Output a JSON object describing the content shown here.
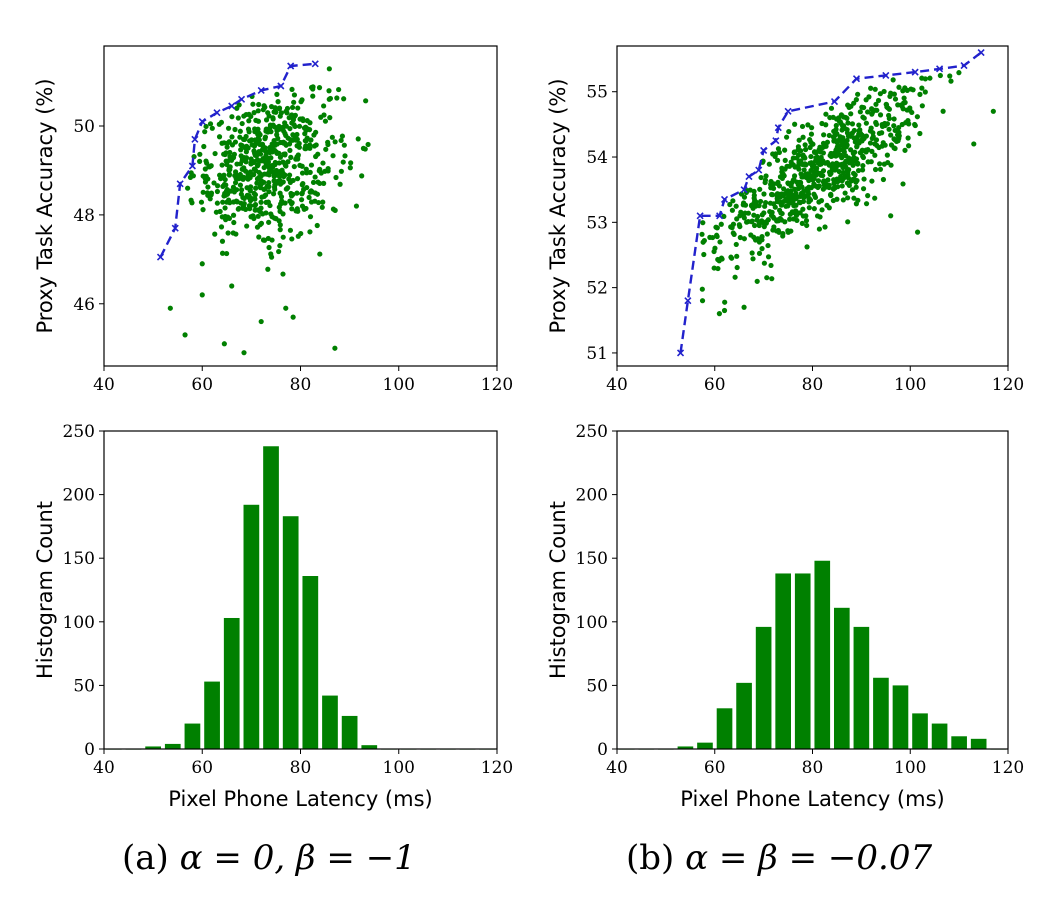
{
  "colors": {
    "scatter": "#008000",
    "frontier": "#2222cc",
    "bar": "#008000",
    "axis": "#000000"
  },
  "captions": {
    "a": {
      "label": "(a)",
      "math": "α = 0, β = −1"
    },
    "b": {
      "label": "(b)",
      "math": "α = β = −0.07"
    }
  },
  "chart_data": [
    {
      "id": "scatter-a",
      "type": "scatter",
      "title": "",
      "xlabel": "",
      "ylabel": "Proxy Task Accuracy (%)",
      "xlim": [
        40,
        120
      ],
      "ylim": [
        44.6,
        51.8
      ],
      "xticks": [
        "40",
        "60",
        "80",
        "100",
        "120"
      ],
      "yticks": [
        "46",
        "48",
        "50"
      ],
      "cloud": {
        "n": 620,
        "x_mean": 73,
        "x_sd": 7.5,
        "y_mean": 49.2,
        "y_sd": 0.85,
        "slope": 0.02,
        "xmin": 51,
        "xmax": 94,
        "ymin": 44.9,
        "ymax": 51.3
      },
      "outliers": [
        [
          53.5,
          45.9
        ],
        [
          56.5,
          45.3
        ],
        [
          60,
          46.2
        ],
        [
          64.5,
          45.1
        ],
        [
          68.5,
          44.9
        ],
        [
          72,
          45.6
        ],
        [
          77,
          45.9
        ],
        [
          78.5,
          45.7
        ],
        [
          87,
          45
        ],
        [
          60,
          46.9
        ],
        [
          66,
          46.4
        ]
      ],
      "frontier": [
        [
          51.5,
          47.05
        ],
        [
          54.5,
          47.7
        ],
        [
          55.5,
          48.7
        ],
        [
          58,
          49.1
        ],
        [
          58.5,
          49.7
        ],
        [
          60,
          50.1
        ],
        [
          63,
          50.3
        ],
        [
          66,
          50.45
        ],
        [
          68,
          50.6
        ],
        [
          72,
          50.8
        ],
        [
          76,
          50.9
        ],
        [
          78,
          51.35
        ],
        [
          83,
          51.4
        ]
      ]
    },
    {
      "id": "scatter-b",
      "type": "scatter",
      "title": "",
      "xlabel": "",
      "ylabel": "Proxy Task Accuracy (%)",
      "xlim": [
        40,
        120
      ],
      "ylim": [
        50.8,
        55.7
      ],
      "xticks": [
        "40",
        "60",
        "80",
        "100",
        "120"
      ],
      "yticks": [
        "51",
        "52",
        "53",
        "54",
        "55"
      ],
      "cloud": {
        "n": 720,
        "x_mean": 81,
        "x_sd": 11,
        "y_mean": 53.75,
        "y_sd": 0.4,
        "slope": 0.05,
        "xmin": 55,
        "xmax": 118,
        "ymin": 51.6,
        "ymax": 55.6
      },
      "outliers": [
        [
          57.5,
          51.8
        ],
        [
          62,
          51.65
        ],
        [
          66,
          51.7
        ],
        [
          101.5,
          52.85
        ],
        [
          96,
          53.1
        ],
        [
          113,
          54.2
        ],
        [
          117,
          54.7
        ]
      ],
      "frontier": [
        [
          53,
          51
        ],
        [
          54.5,
          51.8
        ],
        [
          57,
          53.1
        ],
        [
          61,
          53.1
        ],
        [
          62,
          53.35
        ],
        [
          66,
          53.5
        ],
        [
          67,
          53.7
        ],
        [
          69,
          53.8
        ],
        [
          70,
          54.1
        ],
        [
          72.5,
          54.25
        ],
        [
          73,
          54.45
        ],
        [
          75,
          54.7
        ],
        [
          84.5,
          54.85
        ],
        [
          89,
          55.2
        ],
        [
          95,
          55.25
        ],
        [
          101,
          55.3
        ],
        [
          106,
          55.35
        ],
        [
          111,
          55.4
        ],
        [
          114.5,
          55.6
        ]
      ]
    },
    {
      "id": "hist-a",
      "type": "bar",
      "title": "",
      "xlabel": "Pixel Phone Latency (ms)",
      "ylabel": "Histogram Count",
      "xlim": [
        40,
        120
      ],
      "ylim": [
        0,
        250
      ],
      "xticks": [
        "40",
        "60",
        "80",
        "100",
        "120"
      ],
      "yticks": [
        "0",
        "50",
        "100",
        "150",
        "200",
        "250"
      ],
      "bin_width": 4,
      "bin_centers": [
        42,
        46,
        50,
        54,
        58,
        62,
        66,
        70,
        74,
        78,
        82,
        86,
        90,
        94,
        98,
        102,
        106,
        110,
        114,
        118
      ],
      "values": [
        0,
        0,
        2,
        4,
        20,
        53,
        103,
        192,
        238,
        183,
        136,
        42,
        26,
        3,
        0,
        0,
        0,
        0,
        0,
        0
      ]
    },
    {
      "id": "hist-b",
      "type": "bar",
      "title": "",
      "xlabel": "Pixel Phone Latency (ms)",
      "ylabel": "Histogram Count",
      "xlim": [
        40,
        120
      ],
      "ylim": [
        0,
        250
      ],
      "xticks": [
        "40",
        "60",
        "80",
        "100",
        "120"
      ],
      "yticks": [
        "0",
        "50",
        "100",
        "150",
        "200",
        "250"
      ],
      "bin_width": 4,
      "bin_centers": [
        42,
        46,
        50,
        54,
        58,
        62,
        66,
        70,
        74,
        78,
        82,
        86,
        90,
        94,
        98,
        102,
        106,
        110,
        114,
        118
      ],
      "values": [
        0,
        0,
        0,
        2,
        5,
        32,
        52,
        96,
        138,
        138,
        148,
        111,
        96,
        56,
        50,
        28,
        20,
        10,
        8,
        0
      ]
    }
  ]
}
